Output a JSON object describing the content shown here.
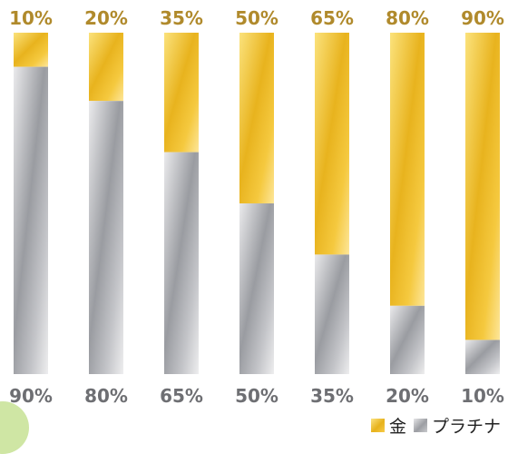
{
  "chart_data": {
    "type": "bar",
    "stacked": true,
    "orientation": "vertical",
    "bar_count": 7,
    "series": [
      {
        "name": "金",
        "values": [
          10,
          20,
          35,
          50,
          65,
          80,
          90
        ],
        "color": "#efbf2a"
      },
      {
        "name": "プラチナ",
        "values": [
          90,
          80,
          65,
          50,
          35,
          20,
          10
        ],
        "color": "#a9abb0"
      }
    ],
    "top_labels": [
      "10%",
      "20%",
      "35%",
      "50%",
      "65%",
      "80%",
      "90%"
    ],
    "bottom_labels": [
      "90%",
      "80%",
      "65%",
      "50%",
      "35%",
      "20%",
      "10%"
    ],
    "ylim": [
      0,
      100
    ],
    "grid": false,
    "legend_position": "bottom-right",
    "label_colors": {
      "top": "#b08a2c",
      "bottom": "#6e6f73"
    }
  },
  "legend": {
    "gold_label": "金",
    "platinum_label": "プラチナ"
  }
}
